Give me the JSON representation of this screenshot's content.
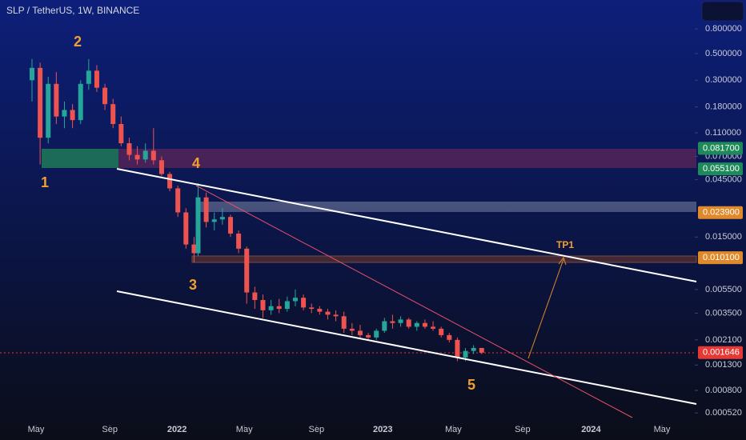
{
  "chart_data": {
    "type": "candlestick",
    "title": "SLP / TetherUS, 1W, BINANCE",
    "log_scale": true,
    "ylim": [
      0.00039,
      1.39
    ],
    "xlim": [
      -7.9,
      163.6
    ],
    "yticks": [
      {
        "value": 0.8,
        "label": "0.800000"
      },
      {
        "value": 0.5,
        "label": "0.500000"
      },
      {
        "value": 0.3,
        "label": "0.300000"
      },
      {
        "value": 0.18,
        "label": "0.180000"
      },
      {
        "value": 0.11,
        "label": "0.110000"
      },
      {
        "value": 0.07,
        "label": "0.070000"
      },
      {
        "value": 0.045,
        "label": "0.045000"
      },
      {
        "value": 0.015,
        "label": "0.015000"
      },
      {
        "value": 0.0055,
        "label": "0.005500"
      },
      {
        "value": 0.0035,
        "label": "0.003500"
      },
      {
        "value": 0.0021,
        "label": "0.002100"
      },
      {
        "value": 0.0013,
        "label": "0.001300"
      },
      {
        "value": 0.0008,
        "label": "0.000800"
      },
      {
        "value": 0.00052,
        "label": "0.000520"
      }
    ],
    "price_tags": [
      {
        "value": 0.0817,
        "label": "0.081700",
        "color": "#1e8a5a"
      },
      {
        "value": 0.0551,
        "label": "0.055100",
        "color": "#1e8a5a"
      },
      {
        "value": 0.0239,
        "label": "0.023900",
        "color": "#e0892a"
      },
      {
        "value": 0.0101,
        "label": "0.010100",
        "color": "#e0892a"
      },
      {
        "value": 0.001646,
        "label": "0.001646",
        "color": "#e53935"
      }
    ],
    "xticks": [
      {
        "value": 1,
        "label": "May"
      },
      {
        "value": 19.2,
        "label": "Sep"
      },
      {
        "value": 35.8,
        "label": "2022"
      },
      {
        "value": 52.4,
        "label": "May"
      },
      {
        "value": 70.2,
        "label": "Sep"
      },
      {
        "value": 86.6,
        "label": "2023"
      },
      {
        "value": 104,
        "label": "May"
      },
      {
        "value": 121.1,
        "label": "Sep"
      },
      {
        "value": 138,
        "label": "2024"
      },
      {
        "value": 155.5,
        "label": "May"
      }
    ],
    "up_color": "#26a69a",
    "down_color": "#ef5350",
    "x": [
      0,
      2,
      4,
      6,
      8,
      10,
      12,
      14,
      16,
      18,
      20,
      22,
      24,
      26,
      28,
      30,
      32,
      34,
      36,
      38,
      40,
      41,
      43,
      45,
      47,
      49,
      51,
      53,
      55,
      57,
      59,
      61,
      63,
      65,
      67,
      69,
      71,
      73,
      75,
      77,
      79,
      81,
      83,
      85,
      87,
      89,
      91,
      93,
      95,
      97,
      99,
      101,
      103,
      105,
      107,
      109,
      111
    ],
    "open": [
      0.3,
      0.38,
      0.1,
      0.28,
      0.15,
      0.17,
      0.14,
      0.28,
      0.36,
      0.26,
      0.19,
      0.13,
      0.09,
      0.072,
      0.066,
      0.078,
      0.065,
      0.05,
      0.038,
      0.024,
      0.013,
      0.011,
      0.032,
      0.02,
      0.021,
      0.022,
      0.016,
      0.012,
      0.0052,
      0.0045,
      0.0037,
      0.004,
      0.0038,
      0.0044,
      0.0047,
      0.0039,
      0.0038,
      0.0036,
      0.0034,
      0.0033,
      0.0026,
      0.0025,
      0.0023,
      0.0022,
      0.0025,
      0.003,
      0.0029,
      0.0031,
      0.0027,
      0.0029,
      0.0027,
      0.0026,
      0.0023,
      0.0021,
      0.0015,
      0.0017,
      0.0018
    ],
    "high": [
      0.45,
      0.42,
      0.32,
      0.35,
      0.2,
      0.19,
      0.3,
      0.45,
      0.4,
      0.28,
      0.21,
      0.15,
      0.1,
      0.085,
      0.09,
      0.12,
      0.07,
      0.052,
      0.04,
      0.026,
      0.015,
      0.042,
      0.035,
      0.024,
      0.026,
      0.023,
      0.017,
      0.0125,
      0.0058,
      0.005,
      0.0045,
      0.0046,
      0.0048,
      0.0055,
      0.005,
      0.0042,
      0.004,
      0.0038,
      0.0037,
      0.0036,
      0.0029,
      0.0028,
      0.0024,
      0.0026,
      0.0032,
      0.0034,
      0.0033,
      0.0032,
      0.003,
      0.0031,
      0.003,
      0.0027,
      0.0024,
      0.0022,
      0.0018,
      0.0019,
      0.0018
    ],
    "low": [
      0.2,
      0.06,
      0.09,
      0.13,
      0.12,
      0.12,
      0.13,
      0.25,
      0.24,
      0.17,
      0.12,
      0.085,
      0.065,
      0.06,
      0.062,
      0.06,
      0.048,
      0.036,
      0.022,
      0.012,
      0.0092,
      0.0105,
      0.018,
      0.017,
      0.019,
      0.015,
      0.011,
      0.0042,
      0.0038,
      0.0032,
      0.0034,
      0.0035,
      0.0036,
      0.004,
      0.0037,
      0.0035,
      0.0034,
      0.0031,
      0.003,
      0.0024,
      0.0023,
      0.0022,
      0.0021,
      0.0021,
      0.0024,
      0.0026,
      0.0027,
      0.0026,
      0.0025,
      0.0026,
      0.0025,
      0.0022,
      0.002,
      0.0014,
      0.0014,
      0.0016,
      0.0016
    ],
    "close": [
      0.38,
      0.1,
      0.28,
      0.15,
      0.17,
      0.14,
      0.28,
      0.36,
      0.26,
      0.19,
      0.13,
      0.09,
      0.072,
      0.066,
      0.078,
      0.065,
      0.05,
      0.038,
      0.024,
      0.013,
      0.011,
      0.032,
      0.02,
      0.021,
      0.022,
      0.016,
      0.012,
      0.0052,
      0.0045,
      0.0037,
      0.004,
      0.0038,
      0.0044,
      0.0047,
      0.0039,
      0.0038,
      0.0036,
      0.0034,
      0.0033,
      0.0026,
      0.0025,
      0.0023,
      0.0022,
      0.0025,
      0.003,
      0.0029,
      0.0031,
      0.0027,
      0.0029,
      0.0027,
      0.0026,
      0.0023,
      0.0021,
      0.0015,
      0.0017,
      0.0018,
      0.001646
    ],
    "annotations": [
      "1",
      "2",
      "3",
      "4",
      "5",
      "TP1"
    ]
  }
}
